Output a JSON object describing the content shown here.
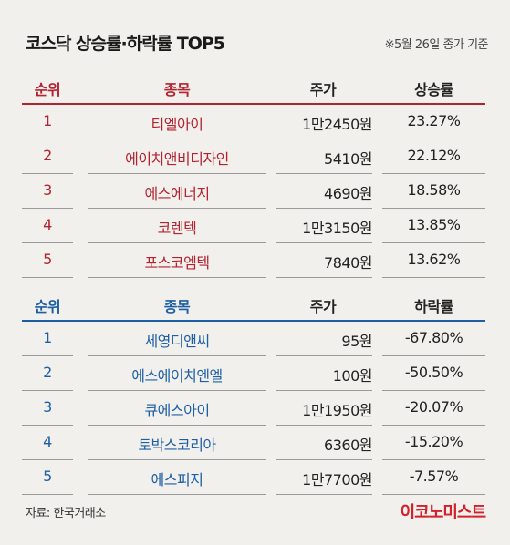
{
  "title": "코스닥 상승률·하락률 TOP5",
  "note": "※5월 26일 종가 기준",
  "rise": {
    "headers": [
      "순위",
      "종목",
      "주가",
      "상승률"
    ],
    "rows": [
      {
        "rank": "1",
        "name": "티엘아이",
        "price": "1만2450원",
        "rate": "23.27%"
      },
      {
        "rank": "2",
        "name": "에이치앤비디자인",
        "price": "5410원",
        "rate": "22.12%"
      },
      {
        "rank": "3",
        "name": "에스에너지",
        "price": "4690원",
        "rate": "18.58%"
      },
      {
        "rank": "4",
        "name": "코렌텍",
        "price": "1만3150원",
        "rate": "13.85%"
      },
      {
        "rank": "5",
        "name": "포스코엠텍",
        "price": "7840원",
        "rate": "13.62%"
      }
    ]
  },
  "fall": {
    "headers": [
      "순위",
      "종목",
      "주가",
      "하락률"
    ],
    "rows": [
      {
        "rank": "1",
        "name": "세영디앤씨",
        "price": "95원",
        "rate": "-67.80%"
      },
      {
        "rank": "2",
        "name": "에스에이치엔엘",
        "price": "100원",
        "rate": "-50.50%"
      },
      {
        "rank": "3",
        "name": "큐에스아이",
        "price": "1만1950원",
        "rate": "-20.07%"
      },
      {
        "rank": "4",
        "name": "토박스코리아",
        "price": "6360원",
        "rate": "-15.20%"
      },
      {
        "rank": "5",
        "name": "에스피지",
        "price": "1만7700원",
        "rate": "-7.57%"
      }
    ]
  },
  "source": "자료: 한국거래소",
  "logo": "이코노미스트",
  "colors": {
    "rise": "#b32330",
    "fall": "#1e5fa4",
    "background": "#f1f0ec",
    "logo": "#d4202a"
  }
}
